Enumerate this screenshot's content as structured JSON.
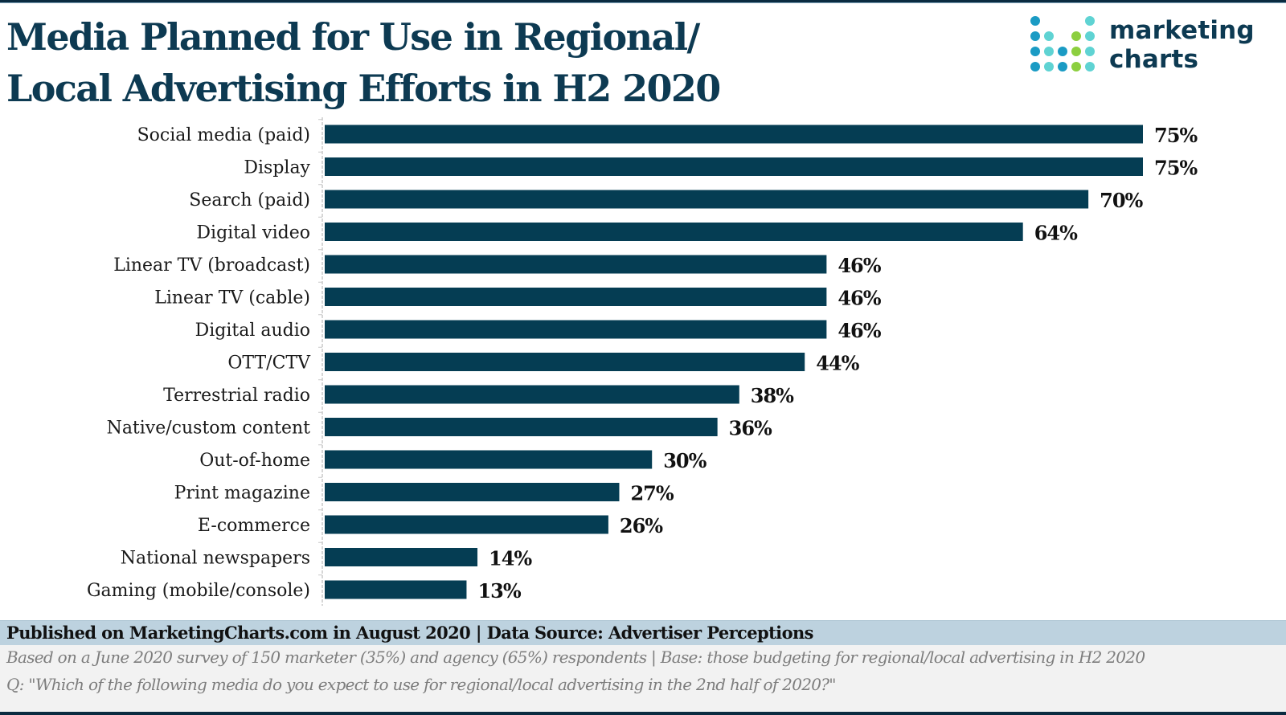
{
  "header": {
    "title_line1": "Media Planned for Use in Regional/",
    "title_line2": "Local Advertising Efforts in H2 2020"
  },
  "logo": {
    "line1": "marketing",
    "line2": "charts",
    "colors": {
      "blue": "#1a9bc4",
      "teal": "#5fd3d3",
      "green": "#8ccf3f"
    }
  },
  "footer": {
    "published": "Published on MarketingCharts.com in August 2020 | Data Source: Advertiser Perceptions",
    "note1": "Based on a June 2020 survey of 150 marketer (35%) and agency (65%) respondents | Base: those budgeting for regional/local advertising in H2 2020",
    "note2": "Q: \"Which of the following media do you expect to use for regional/local advertising in the 2nd half of 2020?\""
  },
  "chart_data": {
    "type": "bar",
    "orientation": "horizontal",
    "title": "Media Planned for Use in Regional/Local Advertising Efforts in H2 2020",
    "xlabel": "",
    "ylabel": "",
    "xlim": [
      0,
      75
    ],
    "grid": false,
    "legend": "none",
    "bar_color": "#053d53",
    "value_suffix": "%",
    "categories": [
      "Social media (paid)",
      "Display",
      "Search (paid)",
      "Digital video",
      "Linear TV (broadcast)",
      "Linear TV (cable)",
      "Digital audio",
      "OTT/CTV",
      "Terrestrial radio",
      "Native/custom content",
      "Out-of-home",
      "Print magazine",
      "E-commerce",
      "National newspapers",
      "Gaming (mobile/console)"
    ],
    "values": [
      75,
      75,
      70,
      64,
      46,
      46,
      46,
      44,
      38,
      36,
      30,
      27,
      26,
      14,
      13
    ]
  }
}
